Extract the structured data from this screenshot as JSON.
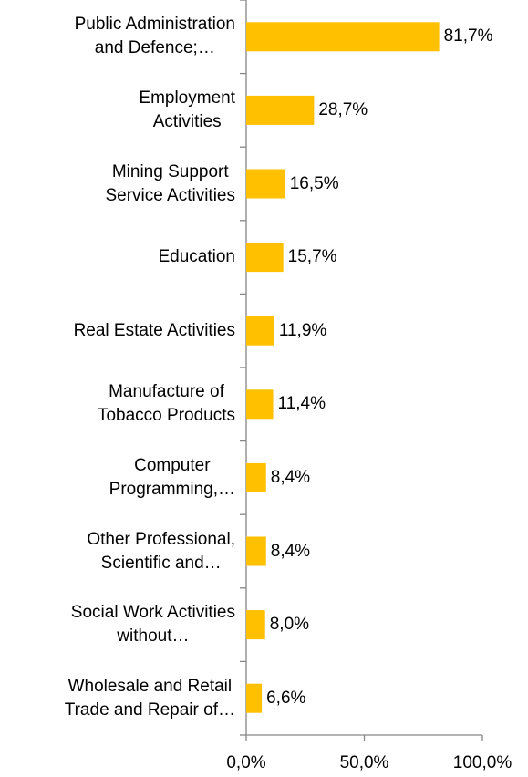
{
  "chart_data": {
    "type": "barh",
    "categories": [
      "Public Administration\nand Defence;…",
      "Employment\nActivities",
      "Mining Support\nService Activities",
      "Education",
      "Real Estate Activities",
      "Manufacture of\nTobacco Products",
      "Computer\nProgramming,…",
      "Other Professional,\nScientific and…",
      "Social Work Activities\nwithout…",
      "Wholesale and Retail\nTrade and Repair of…"
    ],
    "values": [
      81.7,
      28.7,
      16.5,
      15.7,
      11.9,
      11.4,
      8.4,
      8.4,
      8.0,
      6.6
    ],
    "value_labels": [
      "81,7%",
      "28,7%",
      "16,5%",
      "15,7%",
      "11,9%",
      "11,4%",
      "8,4%",
      "8,4%",
      "8,0%",
      "6,6%"
    ],
    "color": "#ffc000",
    "xlim": [
      0,
      100
    ],
    "xticks": [
      {
        "value": 0,
        "label": "0,0%"
      },
      {
        "value": 50,
        "label": "50,0%"
      },
      {
        "value": 100,
        "label": "100,0%"
      }
    ]
  }
}
